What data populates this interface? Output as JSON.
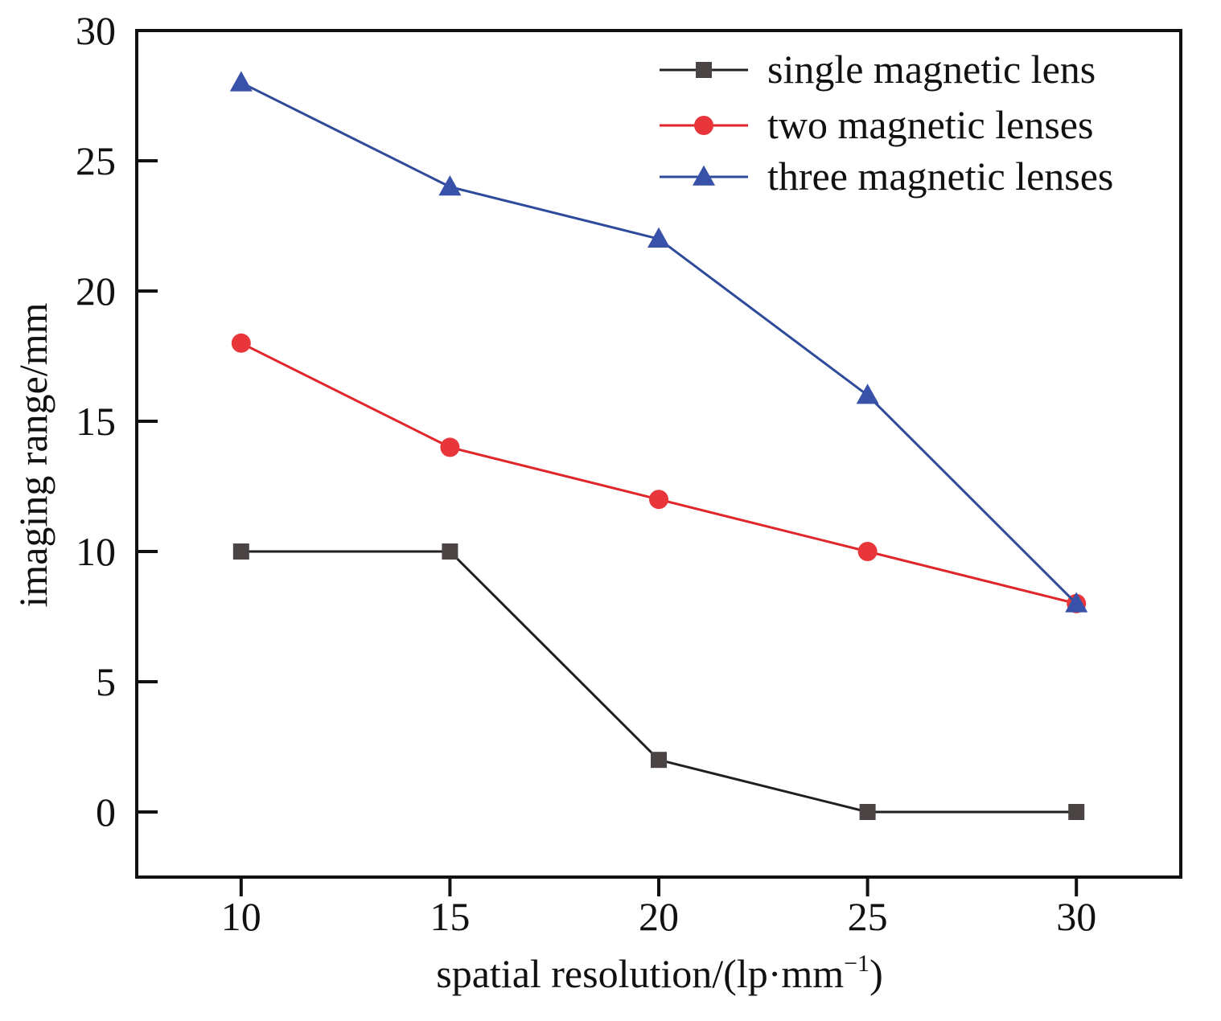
{
  "chart_data": {
    "type": "line",
    "title": "",
    "xlabel": "spatial resolution/(lp·mm",
    "xlabel_superscript": "−1",
    "xlabel_suffix": ")",
    "ylabel": "imaging range/mm",
    "x": [
      10,
      15,
      20,
      25,
      30
    ],
    "xlim": [
      7.5,
      32.5
    ],
    "ylim": [
      -2.5,
      30
    ],
    "xticks": [
      10,
      15,
      20,
      25,
      30
    ],
    "yticks": [
      0,
      5,
      10,
      15,
      20,
      25,
      30
    ],
    "grid": false,
    "legend_position": "top-right",
    "series": [
      {
        "name": "single magnetic lens",
        "values": [
          10,
          10,
          2,
          0,
          0
        ],
        "color": "#231f20",
        "marker_color": "#4a4444",
        "marker": "square"
      },
      {
        "name": "two magnetic lenses",
        "values": [
          18,
          14,
          12,
          10,
          8
        ],
        "color": "#e0262b",
        "marker_color": "#e8363a",
        "marker": "circle"
      },
      {
        "name": "three magnetic lenses",
        "values": [
          28,
          24,
          22,
          16,
          8
        ],
        "color": "#2e4a9b",
        "marker_color": "#3752a8",
        "marker": "triangle"
      }
    ]
  }
}
